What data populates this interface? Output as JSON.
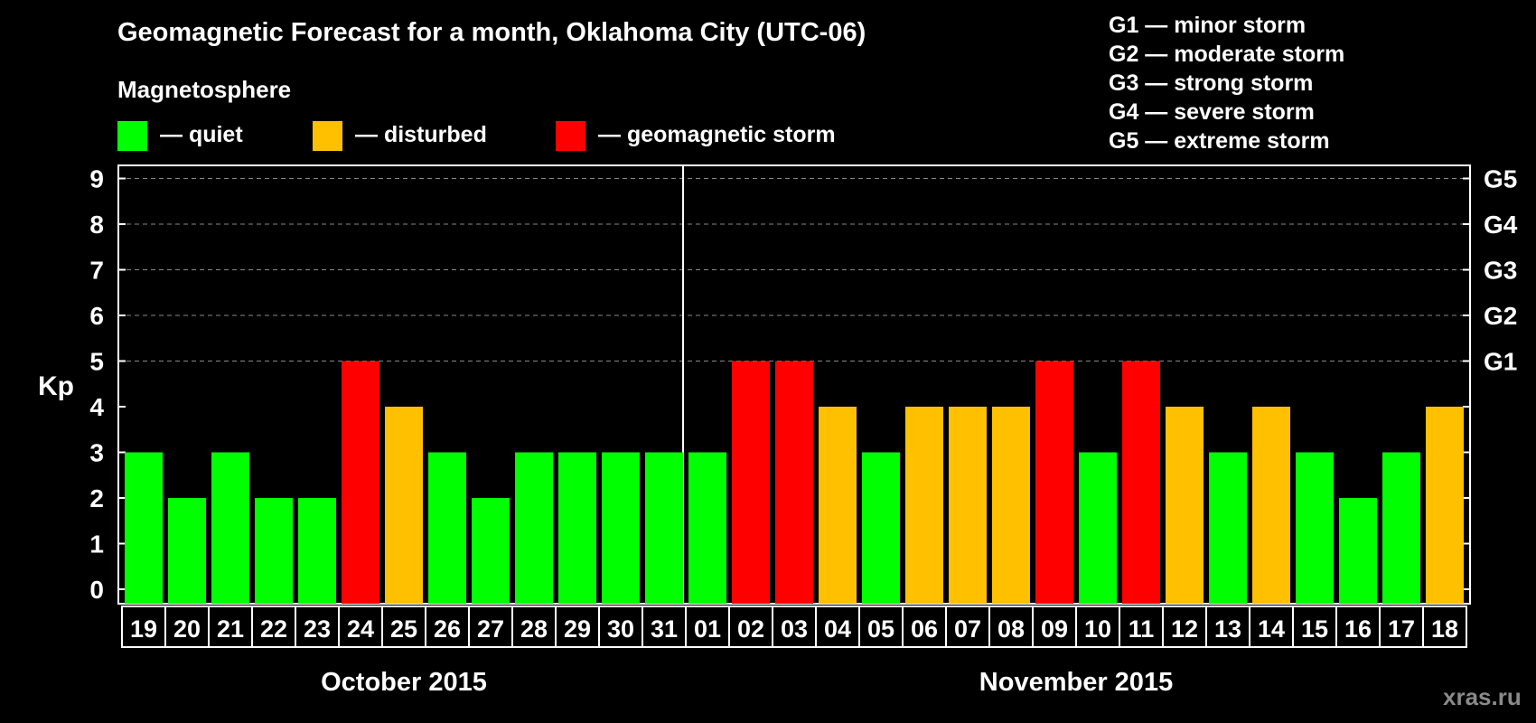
{
  "title": "Geomagnetic Forecast for a month, Oklahoma City (UTC-06)",
  "magnetosphere": {
    "heading": "Magnetosphere",
    "legend": [
      {
        "label": "— quiet",
        "color": "#00ff00"
      },
      {
        "label": "— disturbed",
        "color": "#ffc000"
      },
      {
        "label": "— geomagnetic storm",
        "color": "#ff0000"
      }
    ]
  },
  "storm_legend": [
    "G1 — minor storm",
    "G2 — moderate storm",
    "G3 — strong storm",
    "G4 — severe storm",
    "G5 — extreme storm"
  ],
  "watermark": "xras.ru",
  "colors": {
    "quiet": "#00ff00",
    "disturbed": "#ffc000",
    "storm": "#ff0000",
    "grid": "#888888"
  },
  "chart_data": {
    "type": "bar",
    "ylabel": "Kp",
    "ylim": [
      0,
      9
    ],
    "yticks": [
      "0",
      "1",
      "2",
      "3",
      "4",
      "5",
      "6",
      "7",
      "8",
      "9"
    ],
    "right_ticks": [
      {
        "kp": 5,
        "label": "G1"
      },
      {
        "kp": 6,
        "label": "G2"
      },
      {
        "kp": 7,
        "label": "G3"
      },
      {
        "kp": 8,
        "label": "G4"
      },
      {
        "kp": 9,
        "label": "G5"
      }
    ],
    "categories": [
      "19",
      "20",
      "21",
      "22",
      "23",
      "24",
      "25",
      "26",
      "27",
      "28",
      "29",
      "30",
      "31",
      "01",
      "02",
      "03",
      "04",
      "05",
      "06",
      "07",
      "08",
      "09",
      "10",
      "11",
      "12",
      "13",
      "14",
      "15",
      "16",
      "17",
      "18"
    ],
    "values": [
      3,
      2,
      3,
      2,
      2,
      5,
      4,
      3,
      2,
      3,
      3,
      3,
      3,
      3,
      5,
      5,
      4,
      3,
      4,
      4,
      4,
      5,
      3,
      5,
      4,
      3,
      4,
      3,
      2,
      3,
      4
    ],
    "status": [
      "quiet",
      "quiet",
      "quiet",
      "quiet",
      "quiet",
      "storm",
      "disturbed",
      "quiet",
      "quiet",
      "quiet",
      "quiet",
      "quiet",
      "quiet",
      "quiet",
      "storm",
      "storm",
      "disturbed",
      "quiet",
      "disturbed",
      "disturbed",
      "disturbed",
      "storm",
      "quiet",
      "storm",
      "disturbed",
      "quiet",
      "disturbed",
      "quiet",
      "quiet",
      "quiet",
      "disturbed"
    ],
    "months": [
      {
        "label": "October 2015",
        "first_index": 0,
        "count": 13
      },
      {
        "label": "November 2015",
        "first_index": 13,
        "count": 18
      }
    ]
  }
}
